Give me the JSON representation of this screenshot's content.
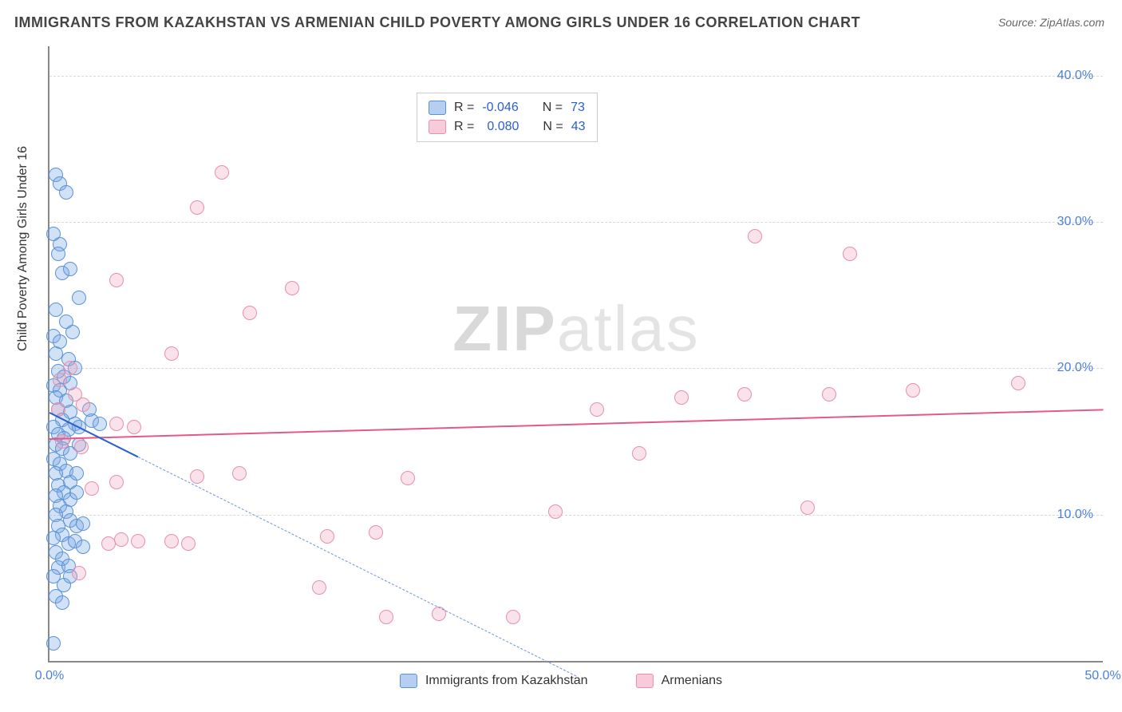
{
  "title": "IMMIGRANTS FROM KAZAKHSTAN VS ARMENIAN CHILD POVERTY AMONG GIRLS UNDER 16 CORRELATION CHART",
  "source": "Source: ZipAtlas.com",
  "yaxis_title": "Child Poverty Among Girls Under 16",
  "watermark_a": "ZIP",
  "watermark_b": "atlas",
  "chart": {
    "type": "scatter",
    "xlim": [
      0,
      50
    ],
    "ylim": [
      0,
      42
    ],
    "yticks": [
      10,
      20,
      30,
      40
    ],
    "ytick_labels": [
      "10.0%",
      "20.0%",
      "30.0%",
      "40.0%"
    ],
    "xticks": [
      0,
      50
    ],
    "xtick_labels": [
      "0.0%",
      "50.0%"
    ],
    "grid_color": "#d8d8d8",
    "background": "#ffffff",
    "series": [
      {
        "name": "Immigrants from Kazakhstan",
        "color_fill": "rgba(122,168,230,0.35)",
        "color_stroke": "#5a92d8",
        "R": "-0.046",
        "N": "73",
        "trend": {
          "x1": 0,
          "y1": 17,
          "x2": 25,
          "y2": -1,
          "solid_until_x": 4.2
        },
        "points": [
          [
            0.3,
            33.2
          ],
          [
            0.5,
            32.6
          ],
          [
            0.8,
            32.0
          ],
          [
            0.2,
            29.2
          ],
          [
            0.5,
            28.5
          ],
          [
            0.4,
            27.8
          ],
          [
            0.6,
            26.5
          ],
          [
            1.0,
            26.8
          ],
          [
            1.4,
            24.8
          ],
          [
            0.3,
            24.0
          ],
          [
            0.8,
            23.2
          ],
          [
            1.1,
            22.5
          ],
          [
            0.2,
            22.2
          ],
          [
            0.5,
            21.8
          ],
          [
            0.3,
            21.0
          ],
          [
            0.9,
            20.6
          ],
          [
            1.2,
            20.0
          ],
          [
            0.4,
            19.8
          ],
          [
            0.7,
            19.4
          ],
          [
            1.0,
            19.0
          ],
          [
            0.2,
            18.8
          ],
          [
            0.5,
            18.5
          ],
          [
            0.3,
            18.0
          ],
          [
            0.8,
            17.8
          ],
          [
            0.4,
            17.2
          ],
          [
            1.0,
            17.0
          ],
          [
            0.6,
            16.5
          ],
          [
            0.2,
            16.0
          ],
          [
            1.2,
            16.2
          ],
          [
            0.9,
            15.8
          ],
          [
            0.4,
            15.5
          ],
          [
            0.7,
            15.2
          ],
          [
            1.4,
            16.0
          ],
          [
            2.0,
            16.4
          ],
          [
            2.4,
            16.2
          ],
          [
            0.3,
            14.8
          ],
          [
            0.6,
            14.5
          ],
          [
            1.0,
            14.2
          ],
          [
            1.4,
            14.8
          ],
          [
            0.2,
            13.8
          ],
          [
            0.5,
            13.5
          ],
          [
            0.8,
            13.0
          ],
          [
            0.3,
            12.8
          ],
          [
            1.0,
            12.2
          ],
          [
            1.3,
            12.8
          ],
          [
            0.4,
            12.0
          ],
          [
            0.7,
            11.5
          ],
          [
            1.0,
            11.0
          ],
          [
            0.3,
            11.3
          ],
          [
            1.3,
            11.5
          ],
          [
            0.5,
            10.6
          ],
          [
            0.8,
            10.2
          ],
          [
            0.3,
            10.0
          ],
          [
            1.0,
            9.6
          ],
          [
            0.4,
            9.2
          ],
          [
            1.3,
            9.2
          ],
          [
            1.6,
            9.4
          ],
          [
            0.6,
            8.6
          ],
          [
            0.2,
            8.4
          ],
          [
            0.9,
            8.0
          ],
          [
            1.2,
            8.2
          ],
          [
            1.6,
            7.8
          ],
          [
            0.3,
            7.4
          ],
          [
            0.6,
            7.0
          ],
          [
            0.4,
            6.4
          ],
          [
            0.9,
            6.5
          ],
          [
            0.2,
            5.8
          ],
          [
            0.7,
            5.2
          ],
          [
            1.0,
            5.8
          ],
          [
            0.3,
            4.4
          ],
          [
            0.6,
            4.0
          ],
          [
            0.2,
            1.2
          ],
          [
            1.9,
            17.2
          ]
        ]
      },
      {
        "name": "Armenians",
        "color_fill": "rgba(240,160,185,0.30)",
        "color_stroke": "#e88fab",
        "R": "0.080",
        "N": "43",
        "trend": {
          "x1": 0,
          "y1": 15.2,
          "x2": 50,
          "y2": 17.2
        },
        "points": [
          [
            8.2,
            33.4
          ],
          [
            7.0,
            31.0
          ],
          [
            33.5,
            29.0
          ],
          [
            38.0,
            27.8
          ],
          [
            3.2,
            26.0
          ],
          [
            5.8,
            21.0
          ],
          [
            11.5,
            25.5
          ],
          [
            9.5,
            23.8
          ],
          [
            1.0,
            20.0
          ],
          [
            0.5,
            19.2
          ],
          [
            1.2,
            18.2
          ],
          [
            1.6,
            17.5
          ],
          [
            0.4,
            17.2
          ],
          [
            3.2,
            16.2
          ],
          [
            4.0,
            16.0
          ],
          [
            1.5,
            14.6
          ],
          [
            0.6,
            15.0
          ],
          [
            26.0,
            17.2
          ],
          [
            30.0,
            18.0
          ],
          [
            33.0,
            18.2
          ],
          [
            37.0,
            18.2
          ],
          [
            41.0,
            18.5
          ],
          [
            46.0,
            19.0
          ],
          [
            28.0,
            14.2
          ],
          [
            24.0,
            10.2
          ],
          [
            36.0,
            10.5
          ],
          [
            7.0,
            12.6
          ],
          [
            9.0,
            12.8
          ],
          [
            3.2,
            12.2
          ],
          [
            2.0,
            11.8
          ],
          [
            4.2,
            8.2
          ],
          [
            3.4,
            8.3
          ],
          [
            2.8,
            8.0
          ],
          [
            5.8,
            8.2
          ],
          [
            6.6,
            8.0
          ],
          [
            1.4,
            6.0
          ],
          [
            12.8,
            5.0
          ],
          [
            13.2,
            8.5
          ],
          [
            15.5,
            8.8
          ],
          [
            16.0,
            3.0
          ],
          [
            18.5,
            3.2
          ],
          [
            22.0,
            3.0
          ],
          [
            17.0,
            12.5
          ]
        ]
      }
    ]
  },
  "legend_top": {
    "r_label": "R =",
    "n_label": "N ="
  },
  "legend_bottom": {
    "s0": "Immigrants from Kazakhstan",
    "s1": "Armenians"
  }
}
